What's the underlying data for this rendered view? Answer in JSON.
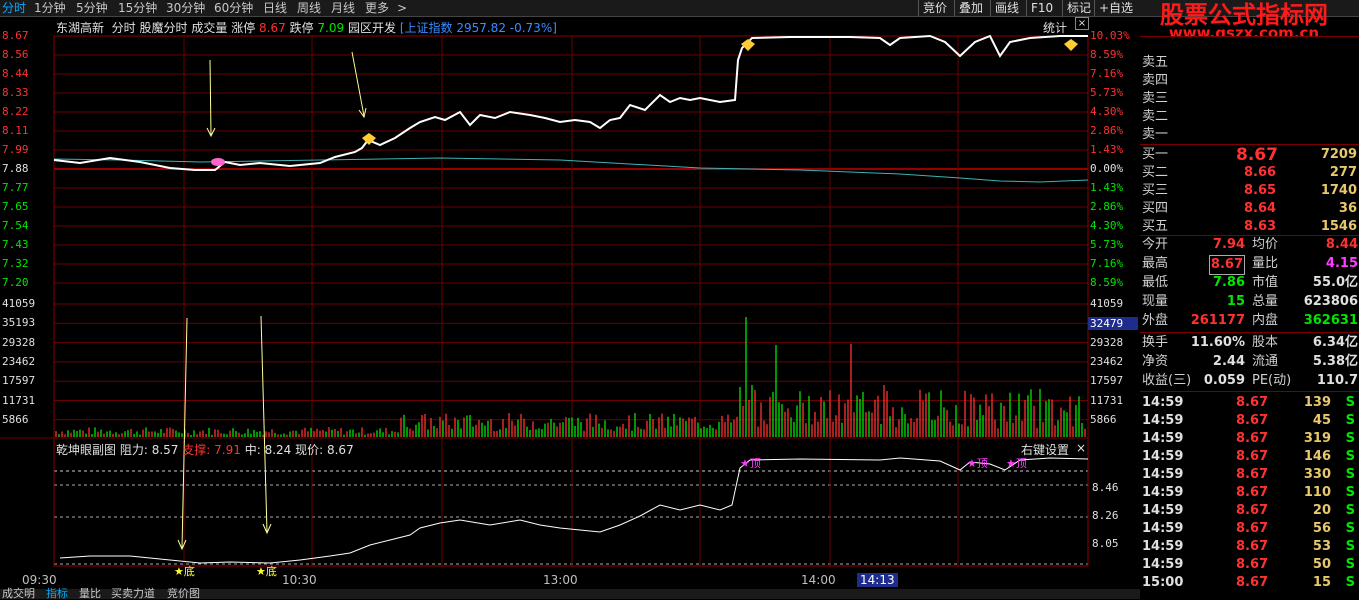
{
  "topbar": {
    "periods": [
      "分时",
      "1分钟",
      "5分钟",
      "15分钟",
      "30分钟",
      "60分钟",
      "日线",
      "周线",
      "月线",
      "更多",
      ">"
    ],
    "right_buttons": [
      "竞价",
      "叠加",
      "画线",
      "F10",
      "标记",
      "+自选"
    ],
    "brand_title": "股票公式指标网",
    "brand_url": "www.gszx.com.cn"
  },
  "main_chart": {
    "stock_name": "东湖高新",
    "mode": "分时",
    "indicator": "股魔分时",
    "volume_label": "成交量",
    "limit_up_label": "涨停",
    "limit_up_value": "8.67",
    "limit_down_label": "跌停",
    "limit_down_value": "7.09",
    "sector": "园区开发",
    "index_label": "[上证指数",
    "index_value": "2957.82 -0.73%]",
    "stats_label": "统计",
    "price_ticks": [
      "8.67",
      "8.56",
      "8.44",
      "8.33",
      "8.22",
      "8.11",
      "7.99",
      "7.88",
      "7.77",
      "7.65",
      "7.54",
      "7.43",
      "7.32",
      "7.20"
    ],
    "pct_ticks": [
      "10.03%",
      "8.59%",
      "7.16%",
      "5.73%",
      "4.30%",
      "2.86%",
      "1.43%",
      "0.00%",
      "1.43%",
      "2.86%",
      "4.30%",
      "5.73%",
      "7.16%",
      "8.59%"
    ],
    "volume_ticks": [
      "41059",
      "35193",
      "29328",
      "23462",
      "17597",
      "11731",
      "5866"
    ],
    "volume_highlight": "32479"
  },
  "sub_chart": {
    "title": "乾坤眼副图",
    "resistance_label": "阻力:",
    "resistance_value": "8.57",
    "support_label": "支撑:",
    "support_value": "7.91",
    "mid_label": "中:",
    "mid_value": "8.24",
    "price_label": "现价:",
    "price_value": "8.67",
    "settings_label": "右键设置",
    "close_label": "×",
    "ticks": [
      "8.46",
      "8.26",
      "8.05"
    ],
    "marker_high": "顶",
    "marker_low": "底"
  },
  "time_axis": [
    "09:30",
    "10:30",
    "13:00",
    "14:00",
    "14:13"
  ],
  "bottom_tabs": [
    "成交明",
    "指标",
    "量比",
    "买卖力道",
    "竞价图"
  ],
  "order_book": {
    "sell_labels": [
      "卖五",
      "卖四",
      "卖三",
      "卖二",
      "卖一"
    ],
    "buy": [
      {
        "label": "买一",
        "price": "8.67",
        "volume": "7209"
      },
      {
        "label": "买二",
        "price": "8.66",
        "volume": "277"
      },
      {
        "label": "买三",
        "price": "8.65",
        "volume": "1740"
      },
      {
        "label": "买四",
        "price": "8.64",
        "volume": "36"
      },
      {
        "label": "买五",
        "price": "8.63",
        "volume": "1546"
      }
    ]
  },
  "quote": [
    {
      "l1": "今开",
      "v1": "7.94",
      "l2": "均价",
      "v2": "8.44",
      "c1": "#ff3232",
      "c2": "#ff3232"
    },
    {
      "l1": "最高",
      "v1": "8.67",
      "l2": "量比",
      "v2": "4.15",
      "c1": "#ff3232",
      "c2": "#ff3cff"
    },
    {
      "l1": "最低",
      "v1": "7.86",
      "l2": "市值",
      "v2": "55.0亿",
      "c1": "#00e600",
      "c2": "#e0e0e0"
    },
    {
      "l1": "现量",
      "v1": "15",
      "l2": "总量",
      "v2": "623806",
      "c1": "#00e600",
      "c2": "#e0e0e0"
    },
    {
      "l1": "外盘",
      "v1": "261177",
      "l2": "内盘",
      "v2": "362631",
      "c1": "#ff3232",
      "c2": "#00e600"
    }
  ],
  "fundamentals": [
    {
      "l1": "换手",
      "v1": "11.60%",
      "l2": "股本",
      "v2": "6.34亿"
    },
    {
      "l1": "净资",
      "v1": "2.44",
      "l2": "流通",
      "v2": "5.38亿"
    },
    {
      "l1": "收益(三)",
      "v1": "0.059",
      "l2": "PE(动)",
      "v2": "110.7"
    }
  ],
  "trades": [
    {
      "time": "14:59",
      "price": "8.67",
      "vol": "139",
      "side": "S"
    },
    {
      "time": "14:59",
      "price": "8.67",
      "vol": "45",
      "side": "S"
    },
    {
      "time": "14:59",
      "price": "8.67",
      "vol": "319",
      "side": "S"
    },
    {
      "time": "14:59",
      "price": "8.67",
      "vol": "146",
      "side": "S"
    },
    {
      "time": "14:59",
      "price": "8.67",
      "vol": "330",
      "side": "S"
    },
    {
      "time": "14:59",
      "price": "8.67",
      "vol": "110",
      "side": "S"
    },
    {
      "time": "14:59",
      "price": "8.67",
      "vol": "20",
      "side": "S"
    },
    {
      "time": "14:59",
      "price": "8.67",
      "vol": "56",
      "side": "S"
    },
    {
      "time": "14:59",
      "price": "8.67",
      "vol": "53",
      "side": "S"
    },
    {
      "time": "14:59",
      "price": "8.67",
      "vol": "50",
      "side": "S"
    },
    {
      "time": "15:00",
      "price": "8.67",
      "vol": "15",
      "side": "S"
    }
  ],
  "colors": {
    "up": "#ff3232",
    "down": "#00e600",
    "grid": "#7a0000",
    "price_line": "#ffffff",
    "avg_line": "#3cb4b4",
    "accent": "#00aaff"
  }
}
